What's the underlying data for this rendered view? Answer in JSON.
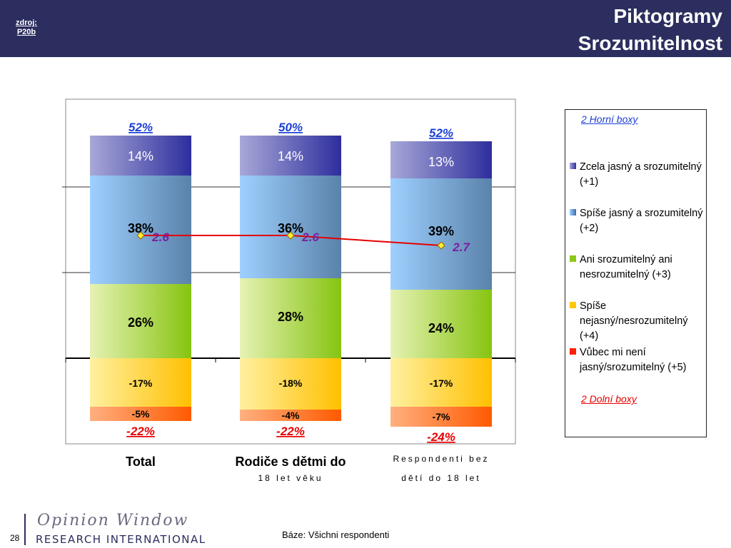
{
  "header": {
    "source_line1": "zdroj:",
    "source_line2": "P20b",
    "title_line1": "Piktogramy",
    "title_line2": "Srozumitelnost"
  },
  "chart_data": {
    "type": "bar",
    "stacked": true,
    "categories": [
      {
        "line1": "Total",
        "line2": ""
      },
      {
        "line1": "Rodiče s dětmi do",
        "line2": "18 let věku"
      },
      {
        "line1": "Respondenti bez",
        "line2": "dětí do 18 let"
      }
    ],
    "series": [
      {
        "name": "Zcela jasný a srozumitelný (+1)",
        "values": [
          14,
          14,
          13
        ],
        "color": "#3a3aa8"
      },
      {
        "name": "Spíše jasný a srozumitelný (+2)",
        "values": [
          38,
          36,
          39
        ],
        "color": "#8ec8ff"
      },
      {
        "name": "Ani srozumitelný ani nesrozumitelný (+3)",
        "values": [
          26,
          28,
          24
        ],
        "color": "#8cc814"
      },
      {
        "name": "Spíše nejasný/nesrozumitelný (+4)",
        "values": [
          -17,
          -18,
          -17
        ],
        "color": "#ffc800"
      },
      {
        "name": "Vůbec mi není jasný/srozumitelný (+5)",
        "values": [
          -5,
          -4,
          -7
        ],
        "color": "#ff5a00"
      }
    ],
    "value_labels": {
      "s0": [
        "14%",
        "14%",
        "13%"
      ],
      "s1": [
        "38%",
        "36%",
        "39%"
      ],
      "s2": [
        "26%",
        "28%",
        "24%"
      ],
      "s3": [
        "-17%",
        "-18%",
        "-17%"
      ],
      "s4": [
        "-5%",
        "-4%",
        "-7%"
      ]
    },
    "top_boxes": [
      "52%",
      "50%",
      "52%"
    ],
    "bottom_boxes": [
      "-22%",
      "-22%",
      "-24%"
    ],
    "mean_line": {
      "values": [
        2.6,
        2.6,
        2.7
      ],
      "labels": [
        "2.6",
        "2.6",
        "2.7"
      ],
      "color": "#e60000"
    },
    "top_box_label": "2 Horní boxy",
    "bottom_box_label": "2 Dolní boxy",
    "grid": true
  },
  "footer": {
    "page": "28",
    "base": "Báze: Všichni respondenti",
    "logo_top": "Opinion Window",
    "logo_bottom": "RESEARCH INTERNATIONAL"
  }
}
